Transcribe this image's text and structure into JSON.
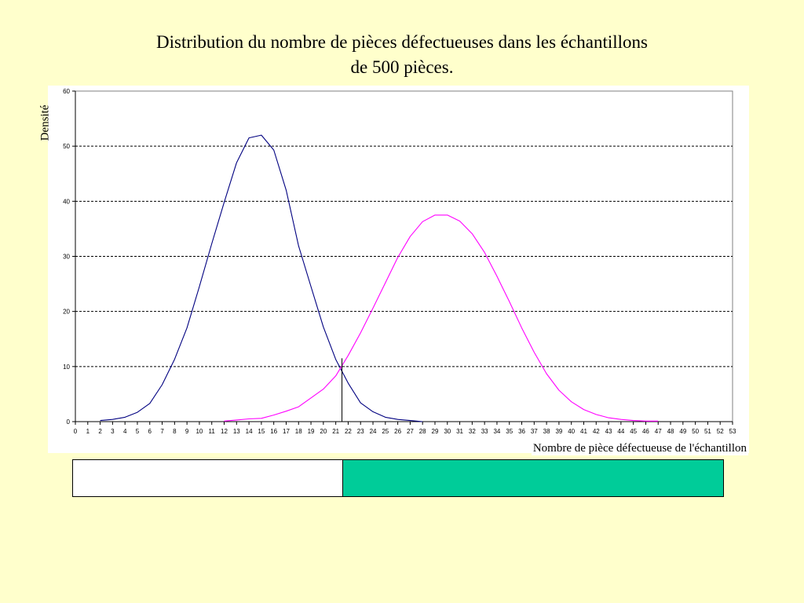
{
  "chart_data": {
    "type": "line",
    "title_line1": "Distribution du nombre de pièces défectueuses dans les échantillons",
    "title_line2": "de 500 pièces.",
    "xlabel": "Nombre de pièce défectueuse de l'échantillon",
    "ylabel": "Densité",
    "xlim": [
      0,
      53
    ],
    "ylim": [
      0,
      60
    ],
    "yticks": [
      0,
      10,
      20,
      30,
      40,
      50,
      60
    ],
    "xticks": [
      0,
      1,
      2,
      3,
      4,
      5,
      6,
      7,
      8,
      9,
      10,
      11,
      12,
      13,
      14,
      15,
      16,
      17,
      18,
      19,
      20,
      21,
      22,
      23,
      24,
      25,
      26,
      27,
      28,
      29,
      30,
      31,
      32,
      33,
      34,
      35,
      36,
      37,
      38,
      39,
      40,
      41,
      42,
      43,
      44,
      45,
      46,
      47,
      48,
      49,
      50,
      51,
      52,
      53
    ],
    "grid": "horizontal-dashed",
    "series": [
      {
        "color": "#000080",
        "x": [
          2,
          3,
          4,
          5,
          6,
          7,
          8,
          9,
          10,
          11,
          12,
          13,
          14,
          15,
          16,
          17,
          18,
          19,
          20,
          21,
          22,
          23,
          24,
          25,
          26,
          27,
          28
        ],
        "values": [
          0.2,
          0.4,
          0.8,
          1.7,
          3.3,
          6.7,
          11.3,
          17.0,
          24.5,
          32.3,
          39.8,
          47.0,
          51.5,
          52.0,
          49.3,
          42.0,
          31.9,
          24.5,
          17.2,
          11.3,
          7.0,
          3.4,
          1.8,
          0.8,
          0.4,
          0.2,
          0
        ]
      },
      {
        "color": "#ff00ff",
        "x": [
          12,
          13,
          14,
          15,
          16,
          17,
          18,
          19,
          20,
          21,
          22,
          23,
          24,
          25,
          26,
          27,
          28,
          29,
          30,
          31,
          32,
          33,
          34,
          35,
          36,
          37,
          38,
          39,
          40,
          41,
          42,
          43,
          44,
          45,
          46,
          47
        ],
        "values": [
          0.1,
          0.3,
          0.5,
          0.6,
          1.2,
          1.9,
          2.7,
          4.3,
          5.9,
          8.3,
          12.0,
          16.1,
          20.6,
          25.2,
          29.8,
          33.6,
          36.3,
          37.5,
          37.5,
          36.4,
          34.1,
          30.7,
          26.4,
          21.8,
          17.0,
          12.6,
          8.7,
          5.7,
          3.6,
          2.2,
          1.3,
          0.7,
          0.4,
          0.2,
          0.1,
          0.1
        ]
      }
    ],
    "threshold_x": 21.5,
    "threshold_y": 11.5,
    "bottom_bar": {
      "split_x": 21.5,
      "left_color": "#ffffff",
      "right_color": "#00cc99"
    }
  }
}
